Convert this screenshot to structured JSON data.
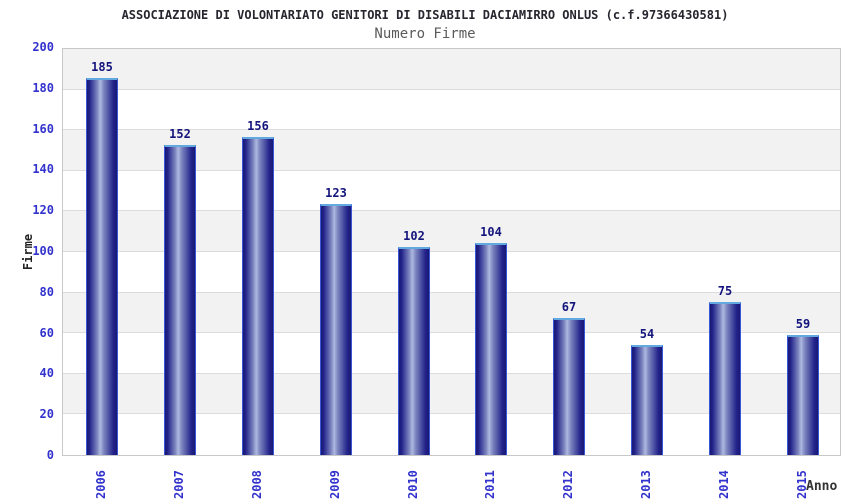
{
  "chart_data": {
    "type": "bar",
    "title": "ASSOCIAZIONE DI VOLONTARIATO GENITORI DI DISABILI DACIAMIRRO ONLUS (c.f.97366430581)",
    "subtitle": "Numero Firme",
    "xlabel": "Anno",
    "ylabel": "Firme",
    "categories": [
      "2006",
      "2007",
      "2008",
      "2009",
      "2010",
      "2011",
      "2012",
      "2013",
      "2014",
      "2015"
    ],
    "values": [
      185,
      152,
      156,
      123,
      102,
      104,
      67,
      54,
      75,
      59
    ],
    "ylim": [
      0,
      200
    ],
    "ytick_step": 20,
    "grid": "horizontal-bands-alternating",
    "legend": "none",
    "colors": {
      "bar_edge_dark": "#191975",
      "bar_mid_dark": "#23238a",
      "bar_light": "#aeb8e0",
      "bar_semi_light": "#7c86bf",
      "bar_border_side": "#3a56d4",
      "bar_border_top": "#62a9e0",
      "value_label": "#14147d",
      "tick_label": "#3232cd",
      "band_gray": "#f2f2f2",
      "band_white": "#ffffff",
      "gridline": "#dcdcdc",
      "plot_border": "#c8c8c8",
      "title_color": "#26262e",
      "subtitle_color": "#5a5a5a",
      "axis_title_color": "#333333"
    }
  }
}
